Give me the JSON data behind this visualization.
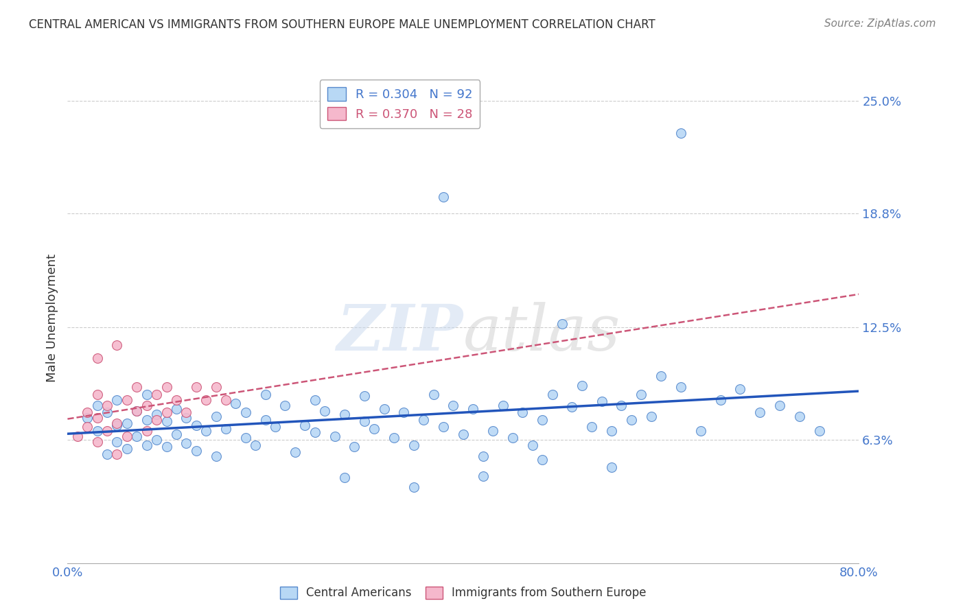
{
  "title": "CENTRAL AMERICAN VS IMMIGRANTS FROM SOUTHERN EUROPE MALE UNEMPLOYMENT CORRELATION CHART",
  "source": "Source: ZipAtlas.com",
  "ylabel": "Male Unemployment",
  "xlim": [
    0.0,
    0.8
  ],
  "ylim": [
    -0.005,
    0.265
  ],
  "yticks": [
    0.063,
    0.125,
    0.188,
    0.25
  ],
  "ytick_labels": [
    "6.3%",
    "12.5%",
    "18.8%",
    "25.0%"
  ],
  "xtick_labels": [
    "0.0%",
    "80.0%"
  ],
  "xticks": [
    0.0,
    0.8
  ],
  "legend1_label": "R = 0.304   N = 92",
  "legend2_label": "R = 0.370   N = 28",
  "series1_color": "#b8d8f5",
  "series2_color": "#f5b8cc",
  "series1_edge_color": "#5588cc",
  "series2_edge_color": "#cc5577",
  "trendline1_color": "#2255bb",
  "trendline2_color": "#cc5577",
  "watermark_color": "#d0dff0",
  "background_color": "#ffffff",
  "grid_color": "#cccccc",
  "title_color": "#333333",
  "axis_label_color": "#4477cc",
  "seed": 42,
  "n1": 92,
  "n2": 28,
  "marker_size": 100,
  "series1_x": [
    0.02,
    0.03,
    0.03,
    0.04,
    0.04,
    0.05,
    0.05,
    0.05,
    0.06,
    0.06,
    0.07,
    0.07,
    0.08,
    0.08,
    0.08,
    0.09,
    0.09,
    0.1,
    0.1,
    0.11,
    0.11,
    0.12,
    0.12,
    0.13,
    0.13,
    0.14,
    0.15,
    0.15,
    0.16,
    0.17,
    0.18,
    0.18,
    0.19,
    0.2,
    0.2,
    0.21,
    0.22,
    0.23,
    0.24,
    0.25,
    0.25,
    0.26,
    0.27,
    0.28,
    0.29,
    0.3,
    0.3,
    0.31,
    0.32,
    0.33,
    0.34,
    0.35,
    0.36,
    0.37,
    0.38,
    0.39,
    0.4,
    0.41,
    0.42,
    0.43,
    0.44,
    0.45,
    0.46,
    0.47,
    0.48,
    0.49,
    0.5,
    0.51,
    0.52,
    0.53,
    0.54,
    0.55,
    0.56,
    0.57,
    0.58,
    0.59,
    0.6,
    0.62,
    0.64,
    0.66,
    0.68,
    0.7,
    0.72,
    0.74,
    0.76,
    0.42,
    0.35,
    0.28,
    0.48,
    0.55,
    0.62,
    0.38
  ],
  "series1_y": [
    0.075,
    0.068,
    0.082,
    0.055,
    0.078,
    0.062,
    0.071,
    0.085,
    0.058,
    0.072,
    0.065,
    0.079,
    0.06,
    0.074,
    0.088,
    0.063,
    0.077,
    0.059,
    0.073,
    0.066,
    0.08,
    0.061,
    0.075,
    0.057,
    0.071,
    0.068,
    0.076,
    0.054,
    0.069,
    0.083,
    0.064,
    0.078,
    0.06,
    0.074,
    0.088,
    0.07,
    0.082,
    0.056,
    0.071,
    0.085,
    0.067,
    0.079,
    0.065,
    0.077,
    0.059,
    0.073,
    0.087,
    0.069,
    0.08,
    0.064,
    0.078,
    0.06,
    0.074,
    0.088,
    0.07,
    0.082,
    0.066,
    0.08,
    0.054,
    0.068,
    0.082,
    0.064,
    0.078,
    0.06,
    0.074,
    0.088,
    0.127,
    0.081,
    0.093,
    0.07,
    0.084,
    0.068,
    0.082,
    0.074,
    0.088,
    0.076,
    0.098,
    0.092,
    0.068,
    0.085,
    0.091,
    0.078,
    0.082,
    0.076,
    0.068,
    0.043,
    0.037,
    0.042,
    0.052,
    0.048,
    0.232,
    0.197
  ],
  "series2_x": [
    0.01,
    0.02,
    0.02,
    0.03,
    0.03,
    0.03,
    0.04,
    0.04,
    0.05,
    0.05,
    0.06,
    0.06,
    0.07,
    0.07,
    0.08,
    0.08,
    0.09,
    0.09,
    0.1,
    0.1,
    0.11,
    0.12,
    0.13,
    0.14,
    0.15,
    0.16,
    0.03,
    0.05
  ],
  "series2_y": [
    0.065,
    0.07,
    0.078,
    0.062,
    0.075,
    0.088,
    0.068,
    0.082,
    0.055,
    0.072,
    0.085,
    0.065,
    0.079,
    0.092,
    0.068,
    0.082,
    0.074,
    0.088,
    0.078,
    0.092,
    0.085,
    0.078,
    0.092,
    0.085,
    0.092,
    0.085,
    0.108,
    0.115
  ]
}
